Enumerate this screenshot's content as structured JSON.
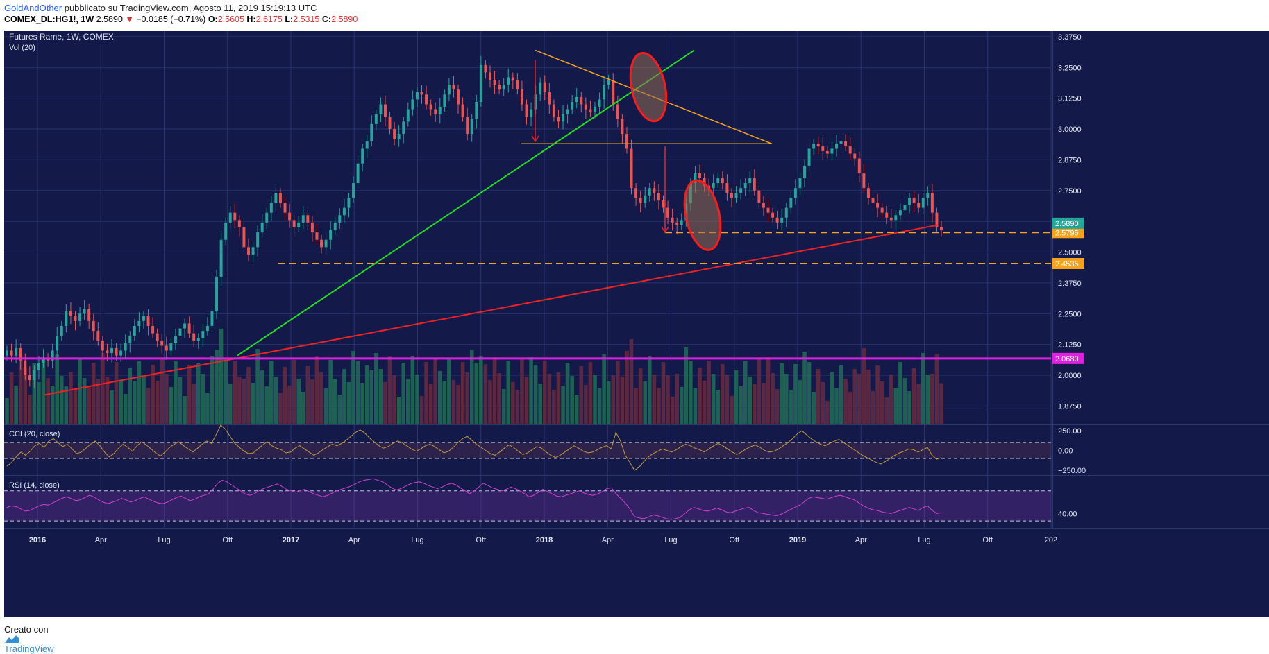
{
  "header": {
    "author": "GoldAndOther",
    "published_text": " pubblicato su TradingView.com, Agosto 11, 2019 15:19:13 UTC",
    "symbol": "COMEX_DL:HG1!, 1W",
    "last": "2.5890",
    "change_arrow": "▼",
    "change": "−0.0185 (−0.71%)",
    "o_label": "O:",
    "o_value": "2.5605",
    "h_label": "H:",
    "h_value": "2.6175",
    "l_label": "L:",
    "l_value": "2.5315",
    "c_label": "C:",
    "c_value": "2.5890"
  },
  "footer": {
    "created_with": "Creato con",
    "brand": "TradingView",
    "brand_icon": "tradingview-logo-icon"
  },
  "colors": {
    "background": "#131a4a",
    "grid": "#2a3470",
    "up": "#26a69a",
    "down": "#ef5350",
    "green_trend": "#22dd22",
    "red_trend": "#ee2222",
    "orange": "#f7a21b",
    "magenta": "#e020e0",
    "cci": "#c49a3c",
    "rsi": "#d040d0"
  },
  "chart_data": [
    {
      "type": "candlestick",
      "title": "Futures Rame, 1W, COMEX",
      "volume_label": "Vol (20)",
      "x_axis_ticks": [
        "2016",
        "Apr",
        "Lug",
        "Ott",
        "2017",
        "Apr",
        "Lug",
        "Ott",
        "2018",
        "Apr",
        "Lug",
        "Ott",
        "2019",
        "Apr",
        "Lug",
        "Ott",
        "202"
      ],
      "x_axis_bold": [
        "2016",
        "2017",
        "2018",
        "2019"
      ],
      "y_axis_ticks": [
        "3.3750",
        "3.2500",
        "3.1250",
        "3.0000",
        "2.8750",
        "2.7500",
        "2.6250",
        "2.5000",
        "2.3750",
        "2.2500",
        "2.1250",
        "2.0000",
        "1.8750"
      ],
      "ylim": [
        1.8,
        3.4
      ],
      "series_close": [
        2.1,
        2.08,
        2.11,
        2.06,
        2.0,
        1.98,
        2.02,
        2.05,
        2.07,
        2.06,
        2.1,
        2.16,
        2.2,
        2.26,
        2.24,
        2.22,
        2.25,
        2.27,
        2.22,
        2.18,
        2.14,
        2.1,
        2.09,
        2.11,
        2.08,
        2.1,
        2.13,
        2.16,
        2.2,
        2.22,
        2.24,
        2.2,
        2.17,
        2.14,
        2.12,
        2.1,
        2.13,
        2.16,
        2.19,
        2.21,
        2.17,
        2.14,
        2.15,
        2.18,
        2.2,
        2.26,
        2.4,
        2.55,
        2.62,
        2.66,
        2.63,
        2.6,
        2.52,
        2.49,
        2.52,
        2.58,
        2.62,
        2.66,
        2.7,
        2.74,
        2.7,
        2.66,
        2.63,
        2.6,
        2.62,
        2.65,
        2.62,
        2.58,
        2.55,
        2.52,
        2.55,
        2.59,
        2.62,
        2.65,
        2.68,
        2.72,
        2.78,
        2.86,
        2.92,
        2.95,
        3.02,
        3.06,
        3.1,
        3.05,
        3.0,
        2.96,
        2.98,
        3.03,
        3.08,
        3.12,
        3.15,
        3.14,
        3.1,
        3.08,
        3.06,
        3.09,
        3.14,
        3.18,
        3.16,
        3.1,
        3.05,
        2.98,
        3.04,
        3.11,
        3.26,
        3.23,
        3.2,
        3.18,
        3.16,
        3.18,
        3.21,
        3.2,
        3.16,
        3.1,
        3.05,
        3.08,
        3.14,
        3.19,
        3.15,
        3.1,
        3.05,
        3.03,
        3.06,
        3.08,
        3.11,
        3.13,
        3.1,
        3.08,
        3.07,
        3.09,
        3.12,
        3.18,
        3.2,
        3.1,
        3.04,
        2.98,
        2.92,
        2.76,
        2.72,
        2.7,
        2.73,
        2.76,
        2.74,
        2.71,
        2.68,
        2.64,
        2.62,
        2.61,
        2.63,
        2.7,
        2.78,
        2.82,
        2.8,
        2.77,
        2.76,
        2.78,
        2.8,
        2.78,
        2.74,
        2.72,
        2.74,
        2.76,
        2.78,
        2.8,
        2.75,
        2.7,
        2.68,
        2.66,
        2.64,
        2.62,
        2.64,
        2.68,
        2.72,
        2.76,
        2.8,
        2.85,
        2.92,
        2.94,
        2.93,
        2.91,
        2.9,
        2.92,
        2.94,
        2.95,
        2.93,
        2.9,
        2.88,
        2.82,
        2.76,
        2.72,
        2.7,
        2.68,
        2.66,
        2.64,
        2.63,
        2.65,
        2.67,
        2.69,
        2.72,
        2.7,
        2.68,
        2.72,
        2.74,
        2.66,
        2.6,
        2.589
      ],
      "candles_approximate": true,
      "annotations": {
        "horizontal_levels": [
          {
            "value": 2.5795,
            "label": "2.5795",
            "color": "orange",
            "style": "dashed"
          },
          {
            "value": 2.4535,
            "label": "2.4535",
            "color": "orange",
            "style": "dashed"
          },
          {
            "value": 2.068,
            "label": "2.0680",
            "color": "magenta",
            "style": "solid"
          }
        ],
        "last_price_label": "2.5890"
      }
    },
    {
      "type": "line",
      "title": "CCI (20, close)",
      "y_axis_ticks": [
        "250.00",
        "0.00",
        "−250.00"
      ],
      "ylim": [
        -320,
        330
      ],
      "values": [
        -200,
        -150,
        -80,
        -20,
        -60,
        -10,
        60,
        90,
        40,
        120,
        150,
        100,
        50,
        80,
        20,
        -40,
        -20,
        30,
        80,
        120,
        60,
        -20,
        -80,
        -40,
        30,
        80,
        40,
        -10,
        60,
        110,
        70,
        20,
        -30,
        -70,
        -20,
        40,
        80,
        110,
        60,
        20,
        -20,
        30,
        80,
        120,
        90,
        200,
        320,
        270,
        180,
        90,
        40,
        -10,
        -40,
        -30,
        20,
        70,
        110,
        60,
        30,
        10,
        -30,
        -20,
        30,
        60,
        20,
        -20,
        -60,
        -30,
        10,
        50,
        80,
        60,
        90,
        130,
        180,
        230,
        260,
        220,
        160,
        110,
        60,
        30,
        50,
        90,
        120,
        100,
        60,
        20,
        -10,
        20,
        60,
        80,
        50,
        10,
        -30,
        -10,
        40,
        100,
        150,
        180,
        130,
        80,
        40,
        0,
        -40,
        -60,
        -20,
        30,
        70,
        40,
        -10,
        -50,
        -30,
        10,
        50,
        30,
        -20,
        -60,
        -90,
        -60,
        -20,
        20,
        60,
        30,
        -10,
        -30,
        -20,
        10,
        40,
        60,
        20,
        230,
        120,
        -60,
        -150,
        -250,
        -210,
        -140,
        -80,
        -40,
        -10,
        20,
        0,
        -20,
        10,
        50,
        80,
        60,
        30,
        10,
        -20,
        20,
        60,
        90,
        60,
        20,
        -20,
        -50,
        -20,
        20,
        50,
        70,
        40,
        0,
        -20,
        -10,
        20,
        60,
        100,
        150,
        210,
        250,
        200,
        150,
        110,
        80,
        60,
        90,
        120,
        140,
        100,
        60,
        20,
        -20,
        -60,
        -90,
        -120,
        -150,
        -170,
        -140,
        -100,
        -60,
        -30,
        -10,
        20,
        10,
        -20,
        10,
        40,
        -60,
        -110,
        -90
      ],
      "reference_lines": [
        100,
        -100
      ]
    },
    {
      "type": "line",
      "title": "RSI (14, close)",
      "y_axis_ticks": [
        "40.00"
      ],
      "ylim": [
        20,
        90
      ],
      "values": [
        48,
        50,
        49,
        46,
        43,
        44,
        47,
        50,
        52,
        51,
        54,
        57,
        60,
        62,
        60,
        57,
        58,
        61,
        64,
        62,
        58,
        55,
        53,
        55,
        57,
        60,
        58,
        55,
        57,
        60,
        62,
        59,
        56,
        54,
        53,
        55,
        58,
        61,
        63,
        60,
        57,
        59,
        62,
        64,
        66,
        72,
        80,
        84,
        82,
        78,
        74,
        70,
        66,
        64,
        66,
        70,
        73,
        75,
        77,
        79,
        76,
        72,
        70,
        68,
        70,
        72,
        69,
        66,
        64,
        62,
        64,
        67,
        70,
        72,
        74,
        76,
        79,
        82,
        84,
        85,
        86,
        84,
        82,
        78,
        74,
        71,
        73,
        76,
        79,
        81,
        82,
        80,
        77,
        75,
        73,
        75,
        78,
        80,
        78,
        74,
        70,
        66,
        70,
        75,
        80,
        77,
        74,
        72,
        70,
        72,
        75,
        73,
        70,
        66,
        62,
        64,
        68,
        72,
        69,
        66,
        63,
        62,
        64,
        66,
        68,
        70,
        67,
        65,
        64,
        66,
        69,
        73,
        74,
        66,
        60,
        54,
        46,
        36,
        34,
        33,
        35,
        38,
        37,
        35,
        33,
        32,
        33,
        35,
        40,
        45,
        48,
        46,
        44,
        43,
        45,
        47,
        45,
        42,
        41,
        43,
        45,
        47,
        48,
        44,
        41,
        40,
        39,
        38,
        37,
        39,
        42,
        45,
        48,
        51,
        55,
        60,
        62,
        61,
        60,
        59,
        61,
        63,
        64,
        62,
        60,
        58,
        54,
        50,
        47,
        45,
        44,
        42,
        41,
        40,
        42,
        44,
        46,
        48,
        46,
        44,
        48,
        50,
        44,
        40,
        41
      ],
      "reference_lines": [
        70,
        30
      ]
    }
  ]
}
